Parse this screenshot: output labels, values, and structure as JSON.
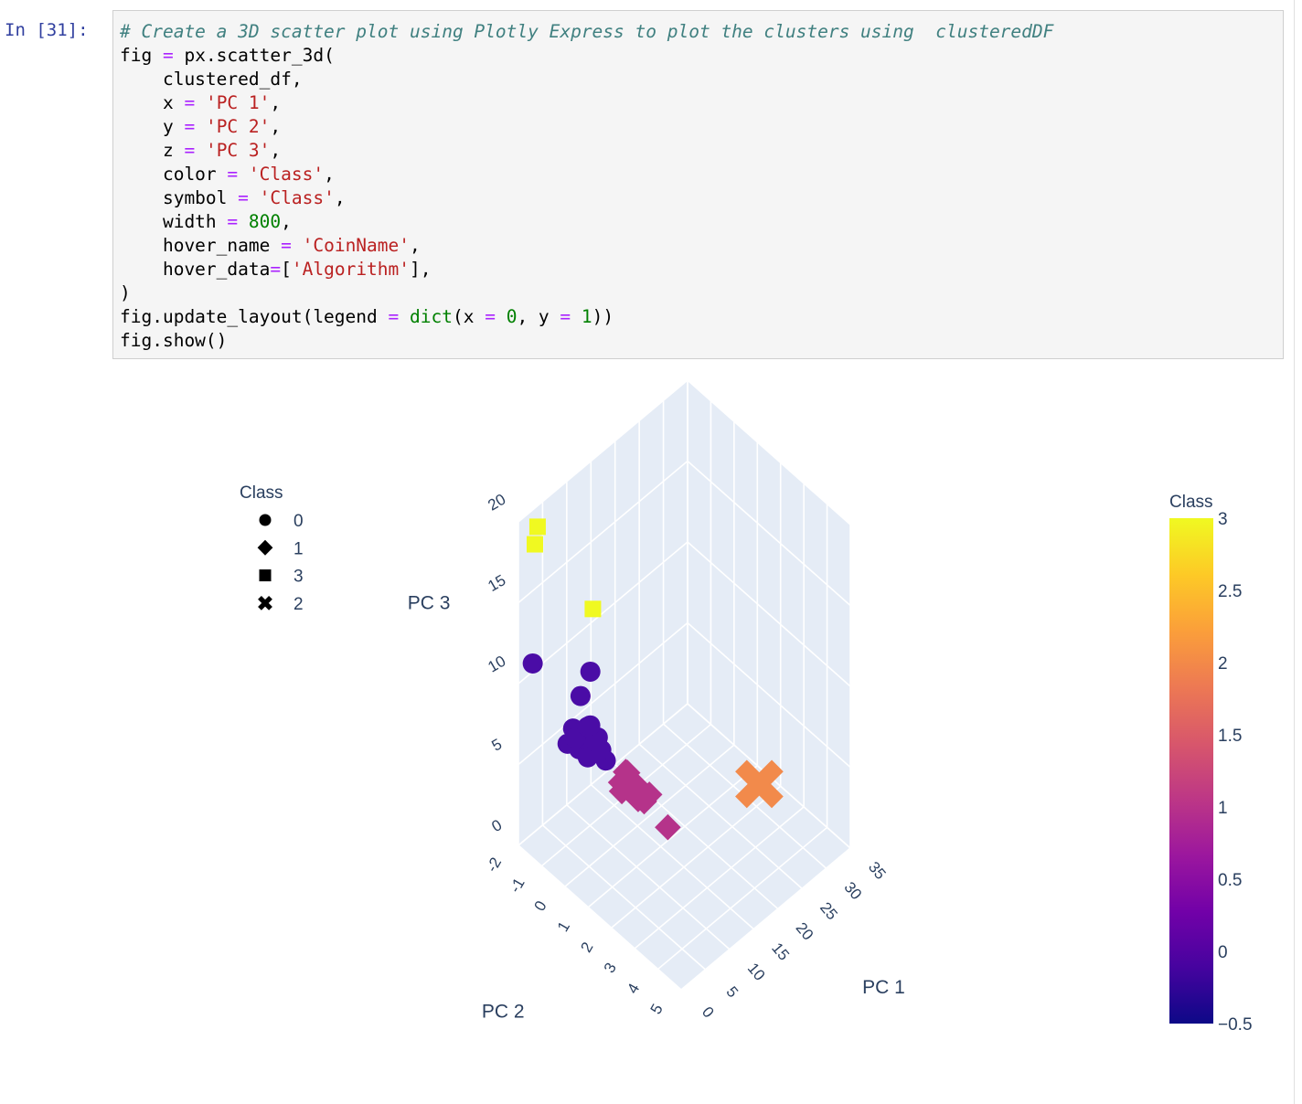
{
  "cell": {
    "prompt": "In [31]:",
    "code_lines": [
      [
        {
          "t": "# Create a 3D scatter plot using Plotly Express to plot the clusters using  clusteredDF",
          "c": "cm"
        }
      ],
      [
        {
          "t": "fig "
        },
        {
          "t": "=",
          "c": "op"
        },
        {
          "t": " px.scatter_3d("
        }
      ],
      [
        {
          "t": "    clustered_df,"
        }
      ],
      [
        {
          "t": "    x "
        },
        {
          "t": "=",
          "c": "op"
        },
        {
          "t": " "
        },
        {
          "t": "'PC 1'",
          "c": "st"
        },
        {
          "t": ","
        }
      ],
      [
        {
          "t": "    y "
        },
        {
          "t": "=",
          "c": "op"
        },
        {
          "t": " "
        },
        {
          "t": "'PC 2'",
          "c": "st"
        },
        {
          "t": ","
        }
      ],
      [
        {
          "t": "    z "
        },
        {
          "t": "=",
          "c": "op"
        },
        {
          "t": " "
        },
        {
          "t": "'PC 3'",
          "c": "st"
        },
        {
          "t": ","
        }
      ],
      [
        {
          "t": "    color "
        },
        {
          "t": "=",
          "c": "op"
        },
        {
          "t": " "
        },
        {
          "t": "'Class'",
          "c": "st"
        },
        {
          "t": ","
        }
      ],
      [
        {
          "t": "    symbol "
        },
        {
          "t": "=",
          "c": "op"
        },
        {
          "t": " "
        },
        {
          "t": "'Class'",
          "c": "st"
        },
        {
          "t": ","
        }
      ],
      [
        {
          "t": "    width "
        },
        {
          "t": "=",
          "c": "op"
        },
        {
          "t": " "
        },
        {
          "t": "800",
          "c": "nu"
        },
        {
          "t": ","
        }
      ],
      [
        {
          "t": "    hover_name "
        },
        {
          "t": "=",
          "c": "op"
        },
        {
          "t": " "
        },
        {
          "t": "'CoinName'",
          "c": "st"
        },
        {
          "t": ","
        }
      ],
      [
        {
          "t": "    hover_data"
        },
        {
          "t": "=",
          "c": "op"
        },
        {
          "t": "["
        },
        {
          "t": "'Algorithm'",
          "c": "st"
        },
        {
          "t": "],"
        }
      ],
      [
        {
          "t": ")"
        }
      ],
      [
        {
          "t": "fig.update_layout(legend "
        },
        {
          "t": "=",
          "c": "op"
        },
        {
          "t": " "
        },
        {
          "t": "dict",
          "c": "bi"
        },
        {
          "t": "(x "
        },
        {
          "t": "=",
          "c": "op"
        },
        {
          "t": " "
        },
        {
          "t": "0",
          "c": "nu"
        },
        {
          "t": ", y "
        },
        {
          "t": "=",
          "c": "op"
        },
        {
          "t": " "
        },
        {
          "t": "1",
          "c": "nu"
        },
        {
          "t": "))"
        }
      ],
      [
        {
          "t": "fig.show()"
        }
      ]
    ]
  },
  "chart_data": {
    "type": "scatter3d",
    "legend": {
      "title": "Class",
      "placement": "top-left",
      "items": [
        {
          "label": "0",
          "symbol": "circle"
        },
        {
          "label": "1",
          "symbol": "diamond"
        },
        {
          "label": "3",
          "symbol": "square"
        },
        {
          "label": "2",
          "symbol": "x"
        }
      ]
    },
    "colorbar": {
      "title": "Class",
      "min": -0.5,
      "max": 3,
      "ticks": [
        "3",
        "2.5",
        "2",
        "1.5",
        "1",
        "0.5",
        "0",
        "−0.5"
      ],
      "colors": [
        "#0d0887",
        "#46039f",
        "#7201a8",
        "#9c179e",
        "#bd3786",
        "#d8576b",
        "#ed7953",
        "#fb9f3a",
        "#fdca26",
        "#f0f921"
      ]
    },
    "axes": {
      "x": {
        "label": "PC 1",
        "ticks": [
          "0",
          "5",
          "10",
          "15",
          "20",
          "25",
          "30",
          "35"
        ],
        "range": [
          0,
          35
        ]
      },
      "y": {
        "label": "PC 2",
        "ticks": [
          "-2",
          "-1",
          "0",
          "1",
          "2",
          "3",
          "4",
          "5"
        ],
        "range": [
          -2,
          5
        ]
      },
      "z": {
        "label": "PC 3",
        "ticks": [
          "0",
          "5",
          "10",
          "15",
          "20"
        ],
        "range": [
          0,
          20
        ]
      }
    },
    "series": [
      {
        "name": "0",
        "class": 0,
        "symbol": "circle",
        "color": "#4a0ca6",
        "points": [
          [
            2,
            0.5,
            9
          ],
          [
            1.5,
            0.3,
            8.5
          ],
          [
            2.5,
            0.7,
            9.5
          ],
          [
            3,
            0.2,
            8
          ],
          [
            1,
            0.8,
            9
          ],
          [
            2,
            1,
            10
          ],
          [
            1.5,
            -0.2,
            8.2
          ],
          [
            2.8,
            0.4,
            7.8
          ],
          [
            3.5,
            0.6,
            9.1
          ],
          [
            2.2,
            1.3,
            8.9
          ],
          [
            1.2,
            0.1,
            9.6
          ],
          [
            2.6,
            -0.1,
            8.4
          ],
          [
            3.2,
            0.9,
            8.8
          ],
          [
            4,
            0.5,
            8.6
          ],
          [
            1.8,
            0.6,
            10.2
          ],
          [
            3.8,
            0.3,
            9.4
          ],
          [
            9,
            -1.2,
            8
          ],
          [
            12,
            -1.4,
            8.5
          ],
          [
            2,
            -1.8,
            11
          ]
        ]
      },
      {
        "name": "1",
        "class": 1,
        "symbol": "diamond",
        "color": "#b5338a",
        "points": [
          [
            1,
            2.2,
            9
          ],
          [
            0.8,
            2.6,
            9.2
          ],
          [
            1.2,
            2.9,
            8.8
          ],
          [
            1.5,
            2.4,
            9.3
          ],
          [
            1,
            3.2,
            9.1
          ],
          [
            0.5,
            2.8,
            9.6
          ],
          [
            1.8,
            2.5,
            8.9
          ],
          [
            1.2,
            2.2,
            8.4
          ],
          [
            0.7,
            3,
            9.8
          ],
          [
            1.6,
            3.3,
            9.5
          ],
          [
            0.9,
            2.5,
            10
          ],
          [
            2,
            2.2,
            9.4
          ],
          [
            0.6,
            4.3,
            9
          ]
        ]
      },
      {
        "name": "3",
        "class": 3,
        "symbol": "square",
        "color": "#f0f921",
        "points": [
          [
            1,
            -1.5,
            19
          ],
          [
            3,
            -1.8,
            19.2
          ],
          [
            13,
            -1.5,
            12
          ]
        ]
      },
      {
        "name": "2",
        "class": 2,
        "symbol": "x",
        "color": "#f28a4b",
        "points": [
          [
            33,
            1.5,
            0
          ]
        ]
      }
    ]
  }
}
